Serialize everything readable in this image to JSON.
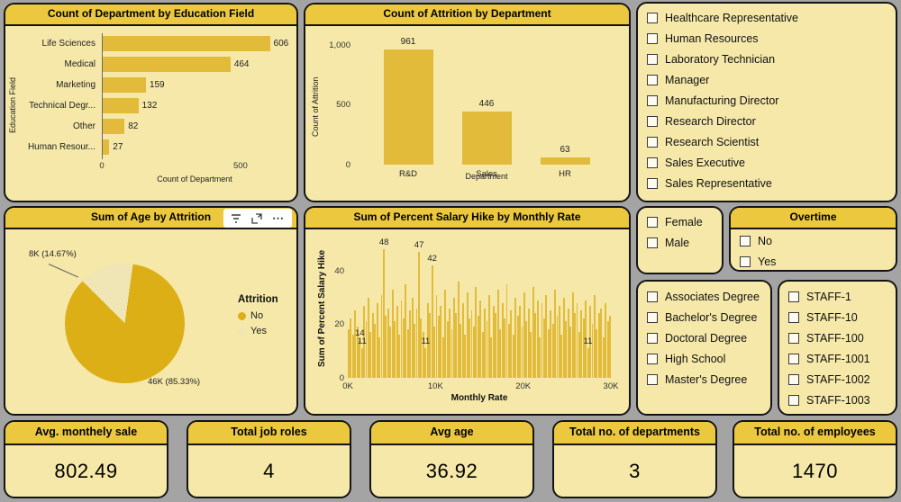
{
  "colors": {
    "page_bg": "#a4a4a4",
    "panel_bg": "#F5E8A9",
    "header_bg": "#EBC83E",
    "bar": "#E2BB3B",
    "pie_no": "#DCAF17",
    "pie_yes": "#F0E5B4",
    "text": "#111111"
  },
  "chart_data": [
    {
      "id": "dept_by_education",
      "type": "bar",
      "orientation": "horizontal",
      "title": "Count of Department by Education Field",
      "categories": [
        "Life Sciences",
        "Medical",
        "Marketing",
        "Technical Degr...",
        "Other",
        "Human Resour..."
      ],
      "values": [
        606,
        464,
        159,
        132,
        82,
        27
      ],
      "xlabel": "Count of Department",
      "ylabel": "Education Field",
      "xlim": [
        0,
        640
      ],
      "xticks": [
        0,
        500
      ],
      "grid": false,
      "legend": false
    },
    {
      "id": "attrition_by_department",
      "type": "bar",
      "orientation": "vertical",
      "title": "Count of Attrition by Department",
      "categories": [
        "R&D",
        "Sales",
        "HR"
      ],
      "values": [
        961,
        446,
        63
      ],
      "xlabel": "Department",
      "ylabel": "Count of Attrition",
      "ylim": [
        0,
        1050
      ],
      "yticks": [
        {
          "v": 0,
          "t": "0"
        },
        {
          "v": 500,
          "t": "500"
        },
        {
          "v": 1000,
          "t": "1,000"
        }
      ],
      "grid": false,
      "legend": false
    },
    {
      "id": "age_by_attrition",
      "type": "pie",
      "title": "Sum of Age by Attrition",
      "legend_title": "Attrition",
      "legend_position": "right",
      "slices": [
        {
          "label": "No",
          "value": "46K",
          "percent": 85.33,
          "callout": "46K (85.33%)"
        },
        {
          "label": "Yes",
          "value": "8K",
          "percent": 14.67,
          "callout": "8K (14.67%)"
        }
      ]
    },
    {
      "id": "salary_hike_by_monthly_rate",
      "type": "bar",
      "orientation": "vertical",
      "title": "Sum of Percent Salary Hike by Monthly Rate",
      "xlabel": "Monthly Rate",
      "ylabel": "Sum of Percent Salary Hike",
      "xticks": [
        "0K",
        "10K",
        "20K",
        "30K"
      ],
      "yticks": [
        0,
        20,
        40
      ],
      "ylim": [
        0,
        52
      ],
      "xlim": [
        "0K",
        "30K"
      ],
      "grid": false,
      "legend": false,
      "values": [
        18,
        22,
        16,
        25,
        19,
        14,
        11,
        27,
        21,
        30,
        17,
        24,
        20,
        28,
        15,
        31,
        48,
        23,
        26,
        19,
        33,
        21,
        27,
        16,
        29,
        22,
        35,
        18,
        25,
        30,
        20,
        26,
        47,
        22,
        17,
        11,
        28,
        24,
        42,
        19,
        31,
        23,
        27,
        15,
        33,
        21,
        26,
        18,
        30,
        24,
        36,
        20,
        28,
        16,
        32,
        22,
        25,
        19,
        34,
        23,
        29,
        17,
        26,
        21,
        31,
        15,
        27,
        24,
        33,
        18,
        28,
        22,
        35,
        20,
        25,
        16,
        30,
        23,
        27,
        19,
        32,
        21,
        26,
        17,
        34,
        24,
        29,
        15,
        28,
        22,
        31,
        18,
        25,
        20,
        33,
        23,
        27,
        16,
        30,
        21,
        26,
        19,
        32,
        24,
        28,
        17,
        25,
        22,
        29,
        11,
        27,
        20,
        31,
        18,
        24,
        26,
        15,
        28,
        21,
        23
      ],
      "labeled_points": [
        {
          "index": 5,
          "label": "14"
        },
        {
          "index": 6,
          "label": "11"
        },
        {
          "index": 16,
          "label": "48"
        },
        {
          "index": 32,
          "label": "47"
        },
        {
          "index": 35,
          "label": "11"
        },
        {
          "index": 38,
          "label": "42"
        },
        {
          "index": 109,
          "label": "11"
        }
      ]
    }
  ],
  "slicers": {
    "job_role": {
      "items": [
        "Healthcare Representative",
        "Human Resources",
        "Laboratory Technician",
        "Manager",
        "Manufacturing Director",
        "Research Director",
        "Research Scientist",
        "Sales Executive",
        "Sales Representative"
      ]
    },
    "gender": {
      "items": [
        "Female",
        "Male"
      ]
    },
    "overtime": {
      "title": "Overtime",
      "items": [
        "No",
        "Yes"
      ]
    },
    "education": {
      "items": [
        "Associates Degree",
        "Bachelor's Degree",
        "Doctoral Degree",
        "High School",
        "Master's Degree"
      ]
    },
    "staff": {
      "items": [
        "STAFF-1",
        "STAFF-10",
        "STAFF-100",
        "STAFF-1001",
        "STAFF-1002",
        "STAFF-1003"
      ]
    }
  },
  "pie_toolbar_icons": [
    "filter-icon",
    "focus-mode-icon",
    "more-options-icon"
  ],
  "kpis": [
    {
      "label": "Avg. monthely sale",
      "value": "802.49"
    },
    {
      "label": "Total job roles",
      "value": "4"
    },
    {
      "label": "Avg age",
      "value": "36.92"
    },
    {
      "label": "Total no. of departments",
      "value": "3"
    },
    {
      "label": "Total no. of employees",
      "value": "1470"
    }
  ]
}
